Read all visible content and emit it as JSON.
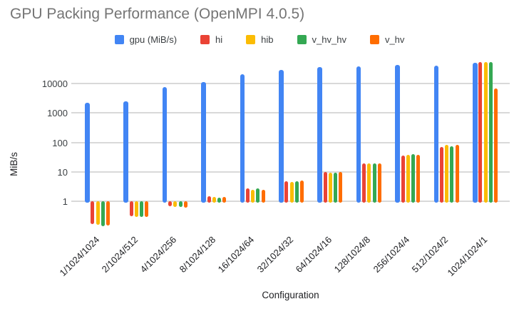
{
  "title": "GPU Packing Performance (OpenMPI 4.0.5)",
  "legend": [
    {
      "label": "gpu (MiB/s)",
      "color": "#4285f4"
    },
    {
      "label": "hi",
      "color": "#ea4335"
    },
    {
      "label": "hib",
      "color": "#fbbc04"
    },
    {
      "label": "v_hv_hv",
      "color": "#34a853"
    },
    {
      "label": "v_hv",
      "color": "#ff6d01"
    }
  ],
  "chart_data": {
    "type": "bar",
    "title": "GPU Packing Performance (OpenMPI 4.0.5)",
    "xlabel": "Configuration",
    "ylabel": "MiB/s",
    "y_scale": "log",
    "y_ticks": [
      1,
      10,
      100,
      1000,
      10000
    ],
    "ylim": [
      0.1,
      60000
    ],
    "grid": true,
    "legend_position": "top",
    "categories": [
      "1/1024/1024",
      "2/1024/512",
      "4/1024/256",
      "8/1024/128",
      "16/1024/64",
      "32/1024/32",
      "64/1024/16",
      "128/1024/8",
      "256/1024/4",
      "512/1024/2",
      "1024/1024/1"
    ],
    "series": [
      {
        "name": "gpu (MiB/s)",
        "color": "#4285f4",
        "values": [
          2200,
          2500,
          7800,
          11500,
          21000,
          30000,
          36000,
          39000,
          43000,
          42000,
          52000
        ]
      },
      {
        "name": "hi",
        "color": "#ea4335",
        "values": [
          0.17,
          0.31,
          0.66,
          1.45,
          2.7,
          4.9,
          9.8,
          19.5,
          36,
          72,
          55000
        ]
      },
      {
        "name": "hib",
        "color": "#fbbc04",
        "values": [
          0.16,
          0.3,
          0.64,
          1.4,
          2.4,
          4.6,
          9.3,
          19.0,
          38,
          82,
          53000
        ]
      },
      {
        "name": "v_hv_hv",
        "color": "#34a853",
        "values": [
          0.14,
          0.29,
          0.64,
          1.35,
          2.7,
          4.8,
          9.4,
          19.0,
          39,
          76,
          55000
        ]
      },
      {
        "name": "v_hv",
        "color": "#ff6d01",
        "values": [
          0.15,
          0.3,
          0.6,
          1.4,
          2.5,
          5.2,
          9.8,
          19.5,
          38,
          82,
          6800
        ]
      }
    ]
  }
}
